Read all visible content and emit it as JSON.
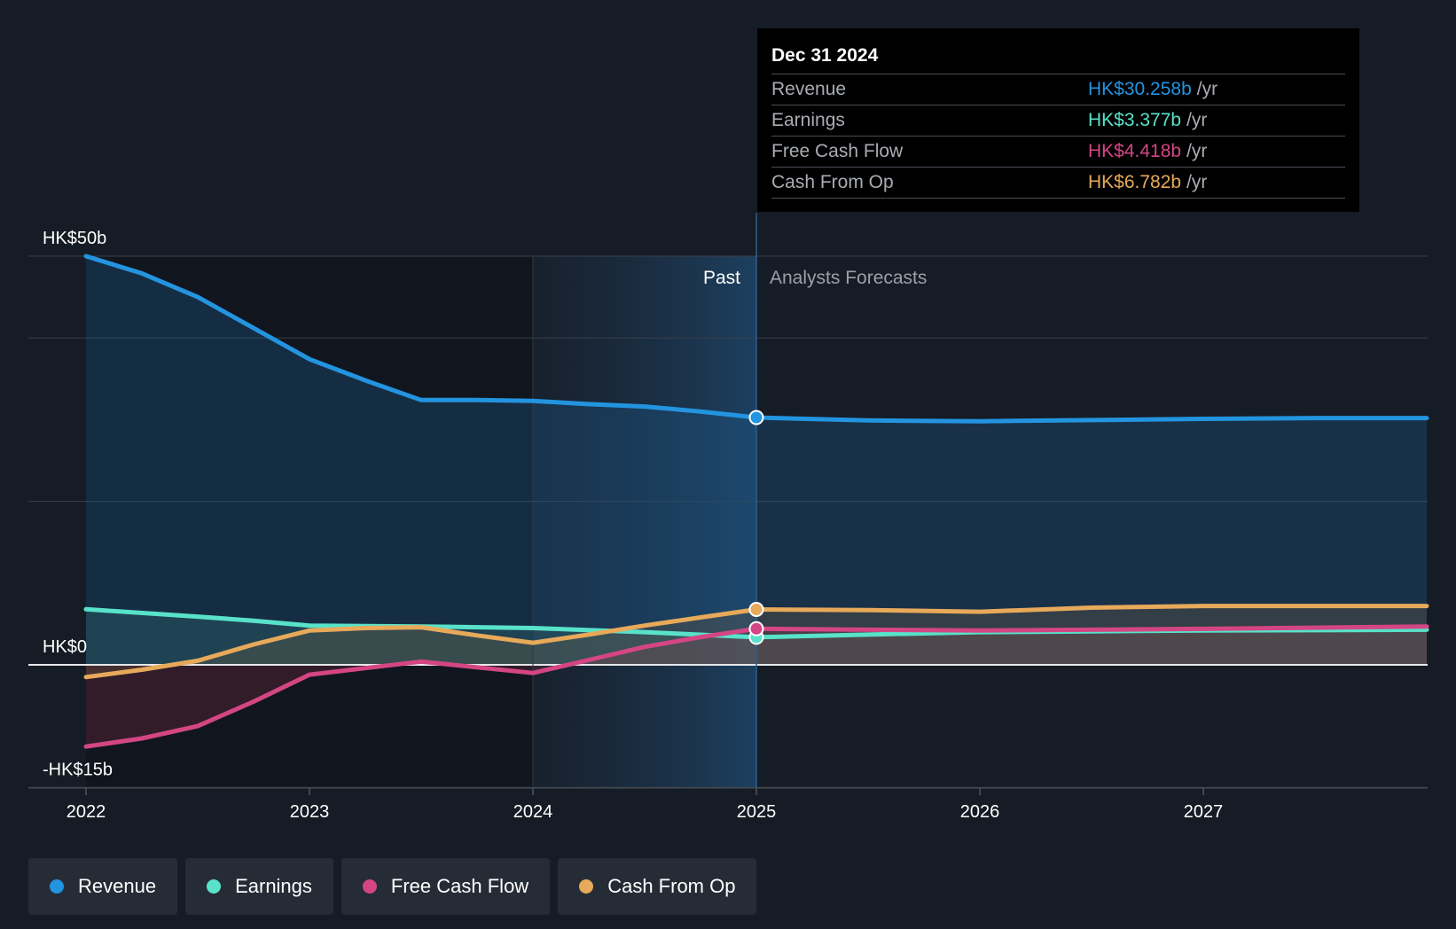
{
  "chart_data": {
    "type": "line",
    "x_ticks": [
      "2022",
      "2023",
      "2024",
      "2025",
      "2026",
      "2027"
    ],
    "ylim": [
      -15,
      50
    ],
    "y_labels": [
      {
        "value": 50,
        "label": "HK$50b"
      },
      {
        "value": 0,
        "label": "HK$0"
      },
      {
        "value": -15,
        "label": "-HK$15b"
      }
    ],
    "gridlines": [
      50,
      40,
      20,
      0,
      -15
    ],
    "past_label": "Past",
    "forecast_label": "Analysts Forecasts",
    "divider_x": 2025.0,
    "shade_x": 2024.0,
    "series": [
      {
        "name": "Revenue",
        "color": "#2394df",
        "fill": "#1e5a8a",
        "marker": {
          "x": 2025.0,
          "y": 30.258
        },
        "points": [
          [
            2022.0,
            50.0
          ],
          [
            2022.25,
            47.9
          ],
          [
            2022.5,
            45.0
          ],
          [
            2022.75,
            41.2
          ],
          [
            2023.0,
            37.4
          ],
          [
            2023.25,
            34.8
          ],
          [
            2023.5,
            32.4
          ],
          [
            2023.75,
            32.4
          ],
          [
            2024.0,
            32.3
          ],
          [
            2024.25,
            31.9
          ],
          [
            2024.5,
            31.6
          ],
          [
            2024.75,
            31.0
          ],
          [
            2025.0,
            30.258
          ],
          [
            2025.5,
            29.9
          ],
          [
            2026.0,
            29.8
          ],
          [
            2026.5,
            29.95
          ],
          [
            2027.0,
            30.1
          ],
          [
            2027.5,
            30.2
          ],
          [
            2028.0,
            30.2
          ]
        ]
      },
      {
        "name": "Earnings",
        "color": "#58e2c9",
        "fill": "#3a7f7a",
        "marker": {
          "x": 2025.0,
          "y": 3.377
        },
        "points": [
          [
            2022.0,
            6.8
          ],
          [
            2022.5,
            5.9
          ],
          [
            2022.75,
            5.4
          ],
          [
            2023.0,
            4.8
          ],
          [
            2023.5,
            4.7
          ],
          [
            2024.0,
            4.5
          ],
          [
            2024.5,
            4.0
          ],
          [
            2025.0,
            3.377
          ],
          [
            2025.5,
            3.7
          ],
          [
            2026.0,
            4.0
          ],
          [
            2026.5,
            4.1
          ],
          [
            2027.0,
            4.2
          ],
          [
            2028.0,
            4.3
          ]
        ]
      },
      {
        "name": "Free Cash Flow",
        "color": "#d44683",
        "fill": "#8a2f4a",
        "marker": {
          "x": 2025.0,
          "y": 4.418
        },
        "points": [
          [
            2022.0,
            -10.0
          ],
          [
            2022.25,
            -9.0
          ],
          [
            2022.5,
            -7.5
          ],
          [
            2022.75,
            -4.5
          ],
          [
            2023.0,
            -1.2
          ],
          [
            2023.25,
            -0.4
          ],
          [
            2023.5,
            0.4
          ],
          [
            2023.75,
            -0.3
          ],
          [
            2024.0,
            -1.0
          ],
          [
            2024.25,
            0.6
          ],
          [
            2024.5,
            2.2
          ],
          [
            2024.75,
            3.4
          ],
          [
            2025.0,
            4.418
          ],
          [
            2025.5,
            4.3
          ],
          [
            2026.0,
            4.2
          ],
          [
            2026.5,
            4.3
          ],
          [
            2027.0,
            4.4
          ],
          [
            2028.0,
            4.7
          ]
        ]
      },
      {
        "name": "Cash From Op",
        "color": "#e7a95a",
        "fill": "#7a6040",
        "marker": {
          "x": 2025.0,
          "y": 6.782
        },
        "points": [
          [
            2022.0,
            -1.5
          ],
          [
            2022.25,
            -0.6
          ],
          [
            2022.5,
            0.5
          ],
          [
            2022.75,
            2.5
          ],
          [
            2023.0,
            4.2
          ],
          [
            2023.25,
            4.5
          ],
          [
            2023.5,
            4.6
          ],
          [
            2023.75,
            3.6
          ],
          [
            2024.0,
            2.7
          ],
          [
            2024.25,
            3.7
          ],
          [
            2024.5,
            4.8
          ],
          [
            2024.75,
            5.8
          ],
          [
            2025.0,
            6.782
          ],
          [
            2025.5,
            6.7
          ],
          [
            2026.0,
            6.5
          ],
          [
            2026.5,
            7.0
          ],
          [
            2027.0,
            7.2
          ],
          [
            2028.0,
            7.2
          ]
        ]
      }
    ]
  },
  "tooltip": {
    "date": "Dec 31 2024",
    "rows": [
      {
        "label": "Revenue",
        "value": "HK$30.258b",
        "unit": "/yr",
        "color": "#2394df"
      },
      {
        "label": "Earnings",
        "value": "HK$3.377b",
        "unit": "/yr",
        "color": "#58e2c9"
      },
      {
        "label": "Free Cash Flow",
        "value": "HK$4.418b",
        "unit": "/yr",
        "color": "#d44683"
      },
      {
        "label": "Cash From Op",
        "value": "HK$6.782b",
        "unit": "/yr",
        "color": "#e7a95a"
      }
    ]
  },
  "legend": [
    {
      "label": "Revenue",
      "color": "#2394df"
    },
    {
      "label": "Earnings",
      "color": "#58e2c9"
    },
    {
      "label": "Free Cash Flow",
      "color": "#d44683"
    },
    {
      "label": "Cash From Op",
      "color": "#e7a95a"
    }
  ]
}
